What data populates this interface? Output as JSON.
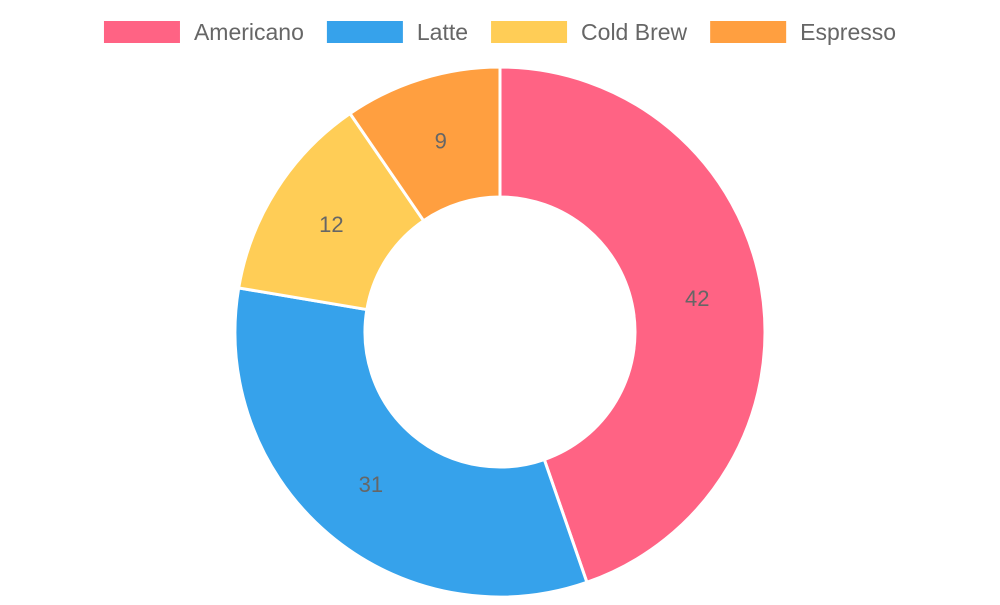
{
  "chart_data": {
    "type": "pie",
    "variant": "doughnut",
    "categories": [
      "Americano",
      "Latte",
      "Cold Brew",
      "Espresso"
    ],
    "values": [
      42,
      31,
      12,
      9
    ],
    "colors": [
      "#ff6384",
      "#36a2eb",
      "#ffcd56",
      "#ff9f40"
    ],
    "legend_position": "top",
    "data_labels": true
  }
}
